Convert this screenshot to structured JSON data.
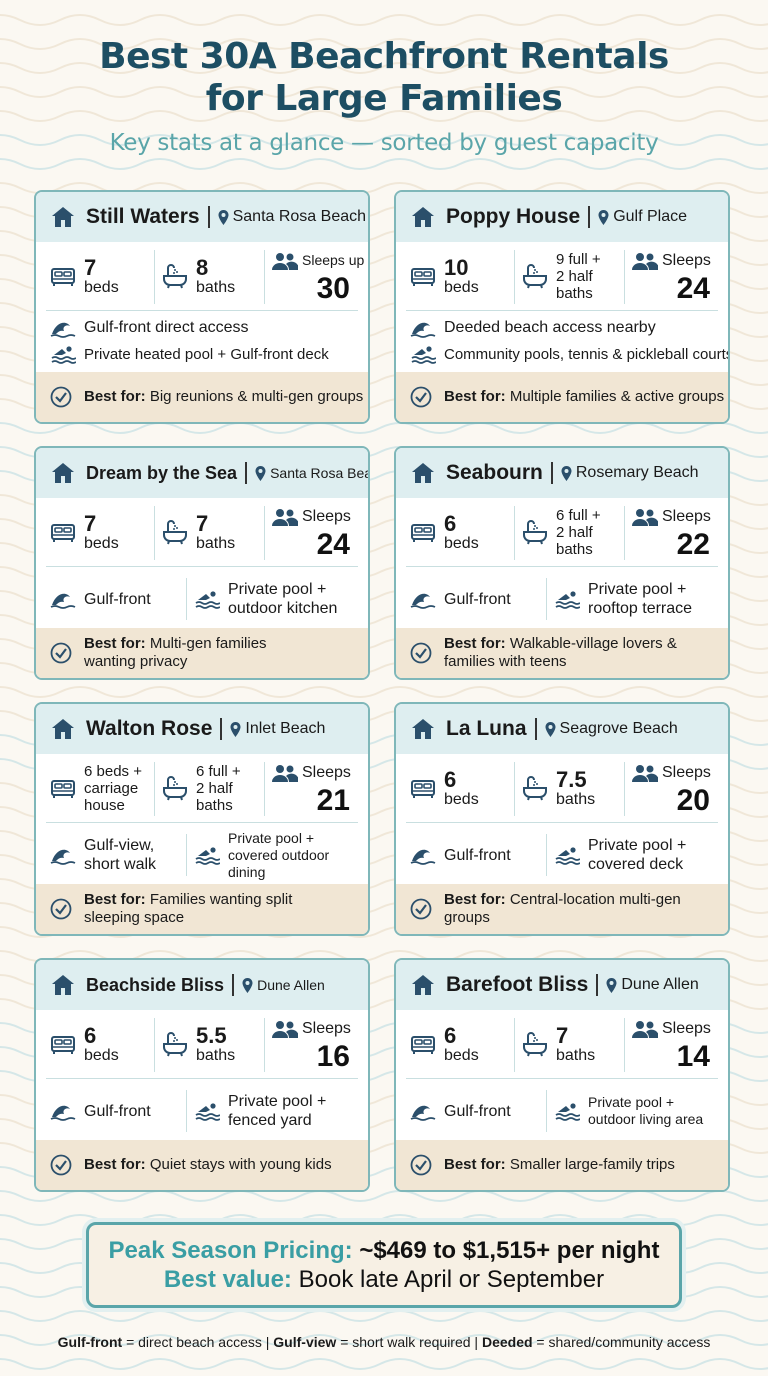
{
  "header": {
    "title_line1": "Best 30A Beachfront Rentals",
    "title_line2": "for Large Families",
    "subtitle": "Key stats at a glance — sorted by guest capacity"
  },
  "colors": {
    "title": "#1d4e63",
    "accent_teal": "#5aa5a9",
    "card_header_bg": "#deeef0",
    "best_for_bg": "#f1e6d4",
    "card_border": "#7fb7b9",
    "icon": "#2b4f6b"
  },
  "cards": [
    {
      "name": "Still Waters",
      "location": "Santa Rosa Beach",
      "beds_num": "7",
      "beds_unit": "beds",
      "baths_num": "8",
      "baths_unit": "baths",
      "sleeps_label": "Sleeps up to",
      "sleeps_num": "30",
      "feature1": "Gulf-front direct access",
      "feature2": "Private heated pool + Gulf-front deck",
      "best_label": "Best for:",
      "best_text": "Big reunions & multi-gen groups"
    },
    {
      "name": "Poppy House",
      "location": "Gulf Place",
      "beds_num": "10",
      "beds_unit": "beds",
      "baths_text": "9 full +\n2 half\nbaths",
      "sleeps_label": "Sleeps",
      "sleeps_num": "24",
      "feature1": "Deeded beach access nearby",
      "feature2": "Community pools, tennis & pickleball courts",
      "best_label": "Best for:",
      "best_text": "Multiple families & active groups"
    },
    {
      "name": "Dream by the Sea",
      "location": "Santa Rosa Beach",
      "beds_num": "7",
      "beds_unit": "beds",
      "baths_num": "7",
      "baths_unit": "baths",
      "sleeps_label": "Sleeps",
      "sleeps_num": "24",
      "feature1": "Gulf-front",
      "feature2": "Private pool +\noutdoor kitchen",
      "best_label": "Best for:",
      "best_text": "Multi-gen families\nwanting privacy"
    },
    {
      "name": "Seabourn",
      "location": "Rosemary Beach",
      "beds_num": "6",
      "beds_unit": "beds",
      "baths_text": "6 full +\n2 half\nbaths",
      "sleeps_label": "Sleeps",
      "sleeps_num": "22",
      "feature1": "Gulf-front",
      "feature2": "Private pool +\nrooftop terrace",
      "best_label": "Best for:",
      "best_text": "Walkable-village lovers &\nfamilies with teens"
    },
    {
      "name": "Walton Rose",
      "location": "Inlet Beach",
      "beds_text": "6 beds +\ncarriage\nhouse",
      "baths_text": "6 full +\n2 half\nbaths",
      "sleeps_label": "Sleeps",
      "sleeps_num": "21",
      "feature1": "Gulf-view,\nshort walk",
      "feature2": "Private pool +\ncovered outdoor dining",
      "best_label": "Best for:",
      "best_text": "Families wanting split\nsleeping space"
    },
    {
      "name": "La Luna",
      "location": "Seagrove Beach",
      "beds_num": "6",
      "beds_unit": "beds",
      "baths_num": "7.5",
      "baths_unit": "baths",
      "sleeps_label": "Sleeps",
      "sleeps_num": "20",
      "feature1": "Gulf-front",
      "feature2": "Private pool +\ncovered deck",
      "best_label": "Best for:",
      "best_text": "Central-location multi-gen groups"
    },
    {
      "name": "Beachside Bliss",
      "location": "Dune Allen",
      "beds_num": "6",
      "beds_unit": "beds",
      "baths_num": "5.5",
      "baths_unit": "baths",
      "sleeps_label": "Sleeps",
      "sleeps_num": "16",
      "feature1": "Gulf-front",
      "feature2": "Private pool +\nfenced yard",
      "best_label": "Best for:",
      "best_text": "Quiet stays with young kids"
    },
    {
      "name": "Barefoot Bliss",
      "location": "Dune Allen",
      "beds_num": "6",
      "beds_unit": "beds",
      "baths_num": "7",
      "baths_unit": "baths",
      "sleeps_label": "Sleeps",
      "sleeps_num": "14",
      "feature1": "Gulf-front",
      "feature2": "Private pool +\noutdoor living area",
      "best_label": "Best for:",
      "best_text": "Smaller large-family trips"
    }
  ],
  "pricing": {
    "label1": "Peak Season Pricing:",
    "value1": "~$469 to $1,515+ per night",
    "label2": "Best value:",
    "value2": "Book late April or September"
  },
  "footnote": {
    "t1": "Gulf-front",
    "d1": " = direct beach access | ",
    "t2": "Gulf-view",
    "d2": " = short walk required | ",
    "t3": "Deeded",
    "d3": " = shared/community access"
  }
}
